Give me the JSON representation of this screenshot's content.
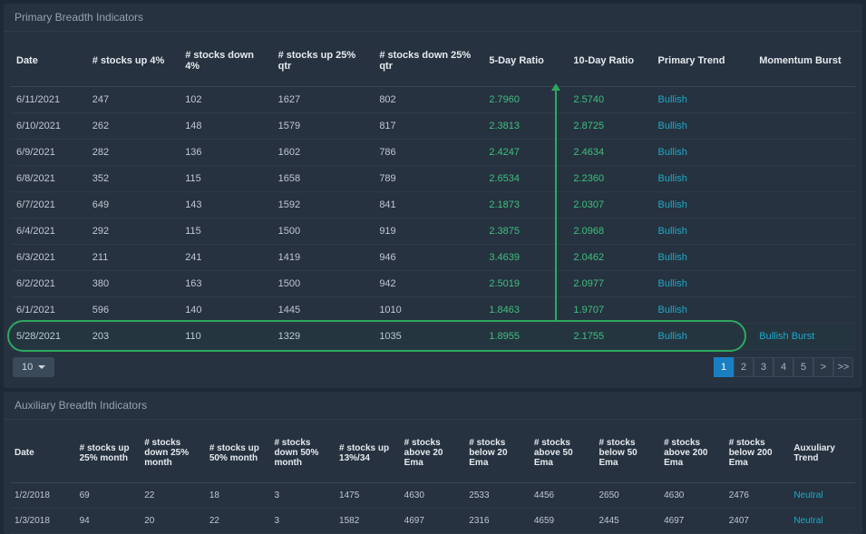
{
  "colors": {
    "background": "#1e2936",
    "panel_bg": "#26323f",
    "header_text": "#e6eaef",
    "body_text": "#bfc8d2",
    "link": "#1ea9c9",
    "ratio_green": "#3fbf7f",
    "annotation_green": "#2ea85f",
    "pager_active": "#1a7fc2"
  },
  "primary": {
    "title": "Primary Breadth Indicators",
    "columns": [
      "Date",
      "# stocks up 4%",
      "# stocks down 4%",
      "# stocks up 25% qtr",
      "# stocks down 25% qtr",
      "5-Day Ratio",
      "10-Day Ratio",
      "Primary Trend",
      "Momentum Burst"
    ],
    "rows": [
      {
        "date": "6/11/2021",
        "up4": "247",
        "down4": "102",
        "up25q": "1627",
        "down25q": "802",
        "r5": "2.7960",
        "r10": "2.5740",
        "trend": "Bullish",
        "burst": ""
      },
      {
        "date": "6/10/2021",
        "up4": "262",
        "down4": "148",
        "up25q": "1579",
        "down25q": "817",
        "r5": "2.3813",
        "r10": "2.8725",
        "trend": "Bullish",
        "burst": ""
      },
      {
        "date": "6/9/2021",
        "up4": "282",
        "down4": "136",
        "up25q": "1602",
        "down25q": "786",
        "r5": "2.4247",
        "r10": "2.4634",
        "trend": "Bullish",
        "burst": ""
      },
      {
        "date": "6/8/2021",
        "up4": "352",
        "down4": "115",
        "up25q": "1658",
        "down25q": "789",
        "r5": "2.6534",
        "r10": "2.2360",
        "trend": "Bullish",
        "burst": ""
      },
      {
        "date": "6/7/2021",
        "up4": "649",
        "down4": "143",
        "up25q": "1592",
        "down25q": "841",
        "r5": "2.1873",
        "r10": "2.0307",
        "trend": "Bullish",
        "burst": ""
      },
      {
        "date": "6/4/2021",
        "up4": "292",
        "down4": "115",
        "up25q": "1500",
        "down25q": "919",
        "r5": "2.3875",
        "r10": "2.0968",
        "trend": "Bullish",
        "burst": ""
      },
      {
        "date": "6/3/2021",
        "up4": "211",
        "down4": "241",
        "up25q": "1419",
        "down25q": "946",
        "r5": "3.4639",
        "r10": "2.0462",
        "trend": "Bullish",
        "burst": ""
      },
      {
        "date": "6/2/2021",
        "up4": "380",
        "down4": "163",
        "up25q": "1500",
        "down25q": "942",
        "r5": "2.5019",
        "r10": "2.0977",
        "trend": "Bullish",
        "burst": ""
      },
      {
        "date": "6/1/2021",
        "up4": "596",
        "down4": "140",
        "up25q": "1445",
        "down25q": "1010",
        "r5": "1.8463",
        "r10": "1.9707",
        "trend": "Bullish",
        "burst": ""
      },
      {
        "date": "5/28/2021",
        "up4": "203",
        "down4": "110",
        "up25q": "1329",
        "down25q": "1035",
        "r5": "1.8955",
        "r10": "2.1755",
        "trend": "Bullish",
        "burst": "Bullish Burst"
      }
    ],
    "highlight_row_index": 9,
    "arrow": {
      "enabled": true
    }
  },
  "pager": {
    "size_label": "10",
    "pages": [
      "1",
      "2",
      "3",
      "4",
      "5"
    ],
    "next_label": ">",
    "last_label": ">>",
    "active_index": 0
  },
  "aux": {
    "title": "Auxiliary Breadth Indicators",
    "columns": [
      "Date",
      "# stocks up 25% month",
      "# stocks down 25% month",
      "# stocks up 50% month",
      "# stocks down 50% month",
      "# stocks up 13%/34",
      "# stocks above 20 Ema",
      "# stocks below 20 Ema",
      "# stocks above 50 Ema",
      "# stocks below 50 Ema",
      "# stocks above 200 Ema",
      "# stocks below 200 Ema",
      "Auxuliary Trend"
    ],
    "rows": [
      {
        "date": "1/2/2018",
        "c": [
          "69",
          "22",
          "18",
          "3",
          "1475",
          "4630",
          "2533",
          "4456",
          "2650",
          "4630",
          "2476"
        ],
        "trend": "Neutral"
      },
      {
        "date": "1/3/2018",
        "c": [
          "94",
          "20",
          "22",
          "3",
          "1582",
          "4697",
          "2316",
          "4659",
          "2445",
          "4697",
          "2407"
        ],
        "trend": "Neutral"
      }
    ]
  }
}
